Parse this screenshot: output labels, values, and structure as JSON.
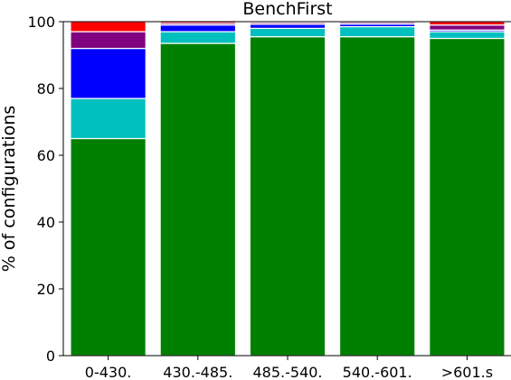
{
  "chart_data": {
    "type": "bar",
    "stacked": true,
    "title": "BenchFirst",
    "xlabel": "",
    "ylabel": "% of configurations",
    "ylim": [
      0,
      100
    ],
    "yticks": [
      0,
      20,
      40,
      60,
      80,
      100
    ],
    "grid": false,
    "categories": [
      "0-430.",
      "430.-485.",
      "485.-540.",
      "540.-601.",
      ">601.s"
    ],
    "series": [
      {
        "color": "#008000",
        "values": [
          65,
          93.5,
          95.5,
          95.5,
          95
        ]
      },
      {
        "color": "#00bfbf",
        "values": [
          12,
          3.5,
          2.5,
          3,
          2
        ]
      },
      {
        "color": "#0000ff",
        "values": [
          15,
          2,
          1.2,
          0.8,
          0.5
        ]
      },
      {
        "color": "#800080",
        "values": [
          5,
          0.5,
          0.5,
          0.5,
          1.5
        ]
      },
      {
        "color": "#ff0000",
        "values": [
          3,
          0.5,
          0.3,
          0.2,
          1
        ]
      }
    ]
  }
}
